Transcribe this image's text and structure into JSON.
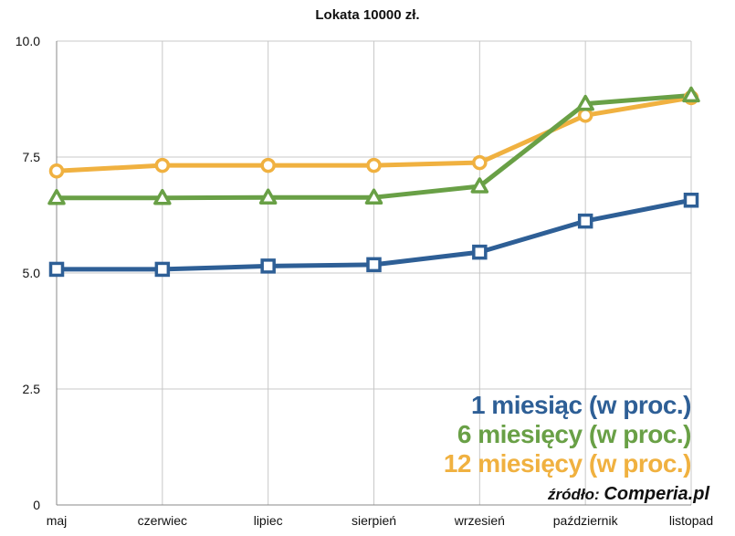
{
  "chart_data": {
    "type": "line",
    "title": "Lokata 10000 zł.",
    "categories": [
      "maj",
      "czerwiec",
      "lipiec",
      "sierpień",
      "wrzesień",
      "październik",
      "listopad"
    ],
    "ylim": [
      0,
      10
    ],
    "yticks": [
      "0",
      "2.5",
      "5.0",
      "7.5",
      "10.0"
    ],
    "ytick_values": [
      0,
      2.5,
      5,
      7.5,
      10
    ],
    "grid": true,
    "series": [
      {
        "name": "1 miesiąc (w proc.)",
        "color": "#2e5f96",
        "marker": "square",
        "values": [
          5.08,
          5.08,
          5.15,
          5.18,
          5.45,
          6.12,
          6.57
        ]
      },
      {
        "name": "6 miesięcy (w proc.)",
        "color": "#69a046",
        "marker": "triangle",
        "values": [
          6.62,
          6.62,
          6.63,
          6.63,
          6.87,
          8.65,
          8.83
        ]
      },
      {
        "name": "12 miesięcy (w proc.)",
        "color": "#f0b140",
        "marker": "circle",
        "values": [
          7.2,
          7.32,
          7.32,
          7.32,
          7.38,
          8.4,
          8.78
        ]
      }
    ]
  },
  "source": {
    "prefix": "źródło:",
    "brand": "Comperia.pl"
  }
}
